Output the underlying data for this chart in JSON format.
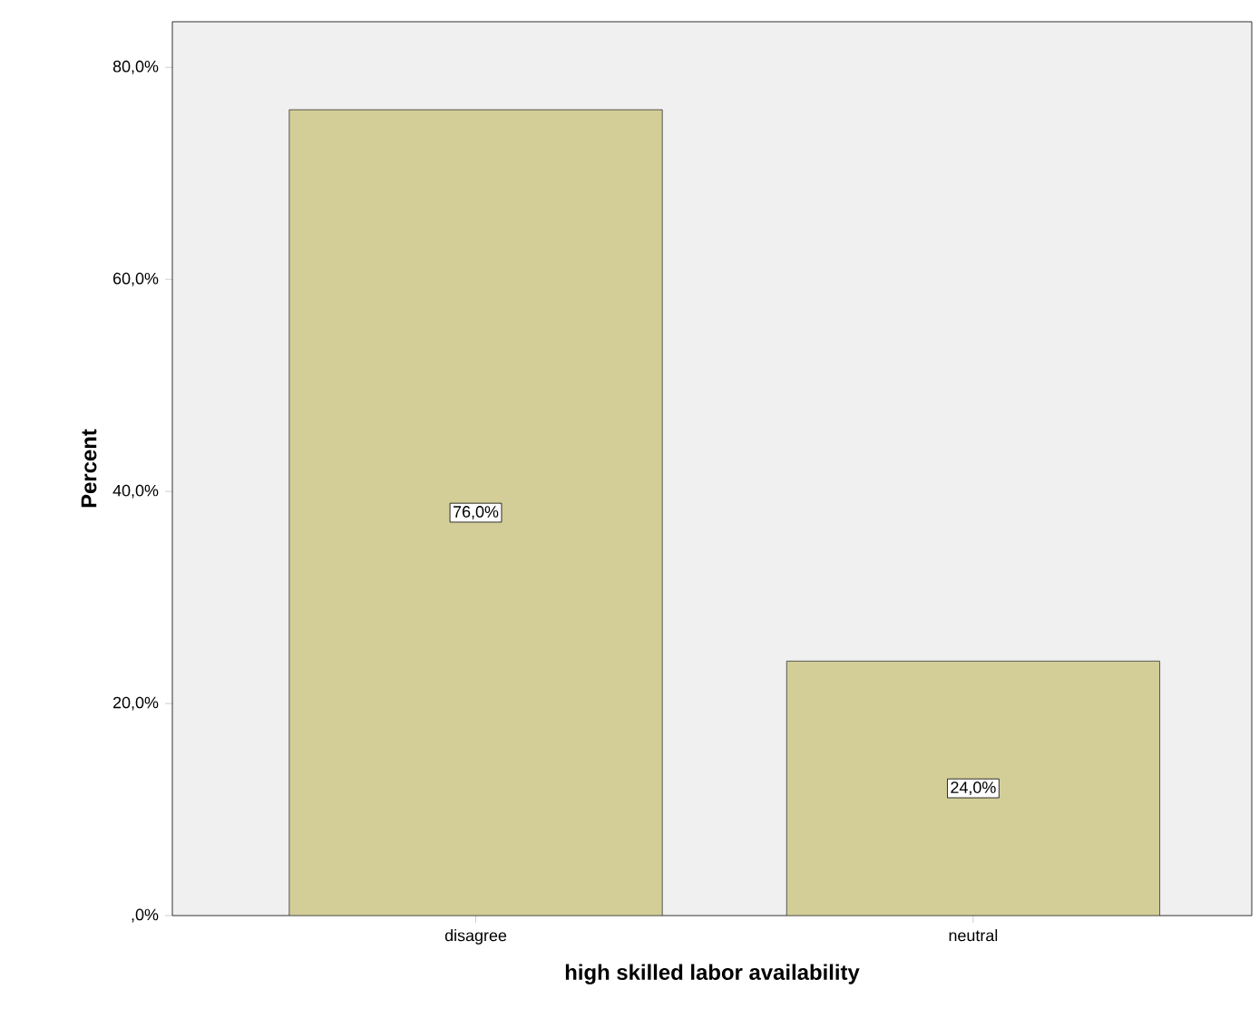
{
  "chart_data": {
    "type": "bar",
    "xlabel": "high skilled labor availability",
    "ylabel": "Percent",
    "categories": [
      "disagree",
      "neutral"
    ],
    "values": [
      76.0,
      24.0
    ],
    "value_labels": [
      "76,0%",
      "24,0%"
    ],
    "color": "#d3ce97",
    "ylim": [
      0,
      84.3
    ],
    "yticks": [
      {
        "value": 0,
        "label": ",0%"
      },
      {
        "value": 20,
        "label": "20,0%"
      },
      {
        "value": 40,
        "label": "40,0%"
      },
      {
        "value": 60,
        "label": "60,0%"
      },
      {
        "value": 80,
        "label": "80,0%"
      }
    ],
    "grid": false
  }
}
